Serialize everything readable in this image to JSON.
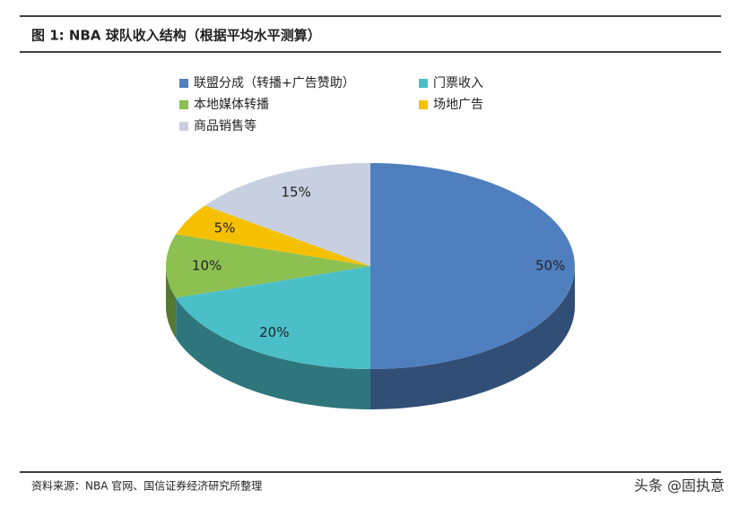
{
  "chart_data": {
    "type": "pie",
    "title": "图 1: NBA 球队收入结构（根据平均水平测算）",
    "categories": [
      "联盟分成（转播+广告赞助）",
      "门票收入",
      "本地媒体转播",
      "场地广告",
      "商品销售等"
    ],
    "values": [
      50,
      20,
      10,
      5,
      15
    ],
    "value_labels": [
      "50%",
      "20%",
      "10%",
      "5%",
      "15%"
    ],
    "colors": [
      "#4f7fbf",
      "#4bbfc8",
      "#8cc152",
      "#f5c000",
      "#c8cfe0"
    ],
    "legend": "top",
    "source": "资料来源：NBA 官网、国信证券经济研究所整理",
    "watermark": "头条 @固执意"
  }
}
